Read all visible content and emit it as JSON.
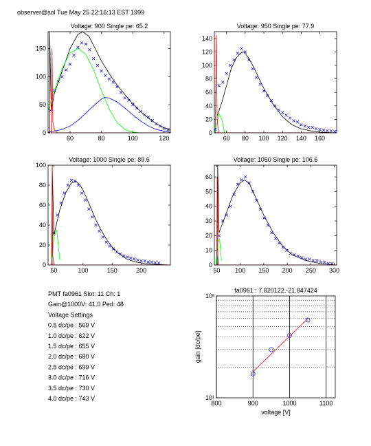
{
  "header": "observer@sol  Tue May 25 22:16:13 EST 1999",
  "chart_data": [
    {
      "type": "line",
      "title": "Voltage: 900 Single pe: 65.2",
      "xlim": [
        46,
        124
      ],
      "xticks": [
        60,
        80,
        100,
        120
      ],
      "ylim": [
        0,
        180
      ],
      "yticks": [
        0,
        50,
        100,
        150
      ],
      "series": [
        {
          "color": "#0000ff",
          "style": "x",
          "x": [
            47.5,
            50,
            52.5,
            55,
            57.5,
            60,
            62.5,
            65,
            67.5,
            70,
            72.5,
            75,
            77.5,
            80,
            82.5,
            85,
            87.5,
            90,
            92.5,
            95,
            97.5,
            100,
            102.5,
            105,
            107.5,
            110,
            112.5,
            115,
            117.5,
            120,
            122.5
          ],
          "values": [
            40,
            75,
            92,
            100,
            112,
            122,
            138,
            152,
            160,
            158,
            148,
            132,
            120,
            110,
            102,
            96,
            90,
            82,
            72,
            62,
            58,
            50,
            44,
            38,
            32,
            28,
            22,
            16,
            12,
            8,
            6
          ]
        },
        {
          "color": "#000000",
          "style": "line",
          "x": [
            47,
            47,
            48,
            50,
            55,
            60,
            65,
            68,
            72,
            76,
            80,
            85,
            90,
            95,
            100,
            105,
            110,
            115,
            120,
            124
          ],
          "values": [
            0,
            180,
            40,
            70,
            110,
            150,
            175,
            180,
            172,
            150,
            128,
            105,
            85,
            68,
            52,
            38,
            26,
            16,
            9,
            5
          ]
        },
        {
          "color": "#00ff00",
          "style": "line",
          "x": [
            46,
            50,
            55,
            60,
            65,
            70,
            75,
            80,
            85,
            90,
            95,
            100,
            105
          ],
          "values": [
            40,
            75,
            115,
            142,
            150,
            140,
            112,
            75,
            42,
            18,
            6,
            1,
            0
          ]
        },
        {
          "color": "#0000ff",
          "style": "line",
          "x": [
            46,
            55,
            60,
            65,
            70,
            75,
            80,
            82,
            85,
            90,
            95,
            100,
            105,
            110,
            115,
            120,
            124
          ],
          "values": [
            1,
            6,
            12,
            22,
            35,
            48,
            60,
            63,
            62,
            55,
            44,
            32,
            21,
            12,
            6,
            3,
            1
          ]
        },
        {
          "color": "#ff0000",
          "style": "line",
          "x": [
            46,
            48,
            48.5,
            49,
            50,
            52,
            124
          ],
          "values": [
            0,
            0,
            150,
            20,
            5,
            0,
            0
          ]
        }
      ]
    },
    {
      "type": "line",
      "title": "Voltage: 950 Single pe: 77.9",
      "xlim": [
        47,
        178
      ],
      "xticks": [
        60,
        80,
        100,
        120,
        140,
        160
      ],
      "ylim": [
        0,
        150
      ],
      "yticks": [
        0,
        20,
        40,
        60,
        80,
        100,
        120,
        140
      ],
      "series": [
        {
          "color": "#0000ff",
          "style": "x",
          "x": [
            48,
            52,
            56,
            60,
            64,
            68,
            72,
            76,
            80,
            84,
            88,
            92,
            96,
            100,
            104,
            108,
            112,
            116,
            120,
            124,
            128,
            132,
            136,
            140,
            144,
            148,
            152,
            156,
            160,
            164,
            168,
            172,
            176
          ],
          "values": [
            5,
            70,
            75,
            88,
            100,
            108,
            118,
            125,
            120,
            108,
            95,
            82,
            72,
            62,
            55,
            48,
            40,
            34,
            30,
            26,
            22,
            18,
            16,
            12,
            10,
            8,
            8,
            6,
            5,
            4,
            3,
            3,
            2
          ]
        },
        {
          "color": "#000000",
          "style": "line",
          "x": [
            50,
            55,
            60,
            65,
            70,
            75,
            78,
            80,
            85,
            90,
            95,
            100,
            110,
            120,
            130,
            140,
            150,
            160,
            178
          ],
          "values": [
            25,
            45,
            70,
            95,
            110,
            118,
            120,
            118,
            108,
            95,
            80,
            66,
            42,
            24,
            12,
            6,
            3,
            1,
            0
          ]
        },
        {
          "color": "#00ff00",
          "style": "line",
          "x": [
            47,
            50,
            52,
            55,
            58
          ],
          "values": [
            0,
            15,
            28,
            20,
            0
          ]
        },
        {
          "color": "#0000ff",
          "style": "line",
          "x": [
            47,
            178
          ],
          "values": [
            0,
            0
          ]
        },
        {
          "color": "#ff0000",
          "style": "line",
          "x": [
            47,
            48,
            49,
            50,
            51,
            52,
            178
          ],
          "values": [
            0,
            0,
            145,
            20,
            5,
            0,
            0
          ]
        }
      ]
    },
    {
      "type": "line",
      "title": "Voltage: 1000 Single pe: 89.6",
      "xlim": [
        40,
        250
      ],
      "xticks": [
        50,
        100,
        150,
        200
      ],
      "ylim": [
        0,
        100
      ],
      "yticks": [
        0,
        20,
        40,
        60,
        80,
        100
      ],
      "series": [
        {
          "color": "#0000ff",
          "style": "x",
          "x": [
            50,
            56,
            62,
            68,
            74,
            80,
            86,
            92,
            98,
            104,
            110,
            116,
            122,
            128,
            134,
            140,
            146,
            152,
            158,
            164,
            170,
            176,
            182,
            188,
            194,
            200,
            206,
            212,
            218,
            224,
            230
          ],
          "values": [
            32,
            50,
            62,
            72,
            80,
            85,
            84,
            80,
            72,
            65,
            56,
            48,
            40,
            34,
            28,
            23,
            19,
            16,
            13,
            11,
            9,
            8,
            7,
            6,
            5,
            4,
            4,
            3,
            3,
            2,
            2
          ]
        },
        {
          "color": "#000000",
          "style": "line",
          "x": [
            47,
            47,
            50,
            60,
            70,
            80,
            88,
            95,
            100,
            110,
            120,
            130,
            140,
            150,
            160,
            175,
            190,
            210,
            250
          ],
          "values": [
            0,
            100,
            30,
            55,
            72,
            82,
            84,
            80,
            75,
            62,
            48,
            36,
            26,
            18,
            12,
            6,
            3,
            1,
            0
          ]
        },
        {
          "color": "#00ff00",
          "style": "line",
          "x": [
            46,
            50,
            55,
            60
          ],
          "values": [
            0,
            28,
            35,
            5
          ]
        },
        {
          "color": "#0000ff",
          "style": "line",
          "x": [
            40,
            250
          ],
          "values": [
            0,
            0
          ]
        },
        {
          "color": "#ff0000",
          "style": "line",
          "x": [
            40,
            46,
            47,
            48,
            50,
            250
          ],
          "values": [
            0,
            0,
            100,
            10,
            0,
            0
          ]
        }
      ]
    },
    {
      "type": "line",
      "title": "Voltage: 1050 Single pe: 106.6",
      "xlim": [
        45,
        305
      ],
      "xticks": [
        50,
        100,
        150,
        200,
        250,
        300
      ],
      "ylim": [
        0,
        68
      ],
      "yticks": [
        0,
        10,
        20,
        30,
        40,
        50,
        60
      ],
      "series": [
        {
          "color": "#0000ff",
          "style": "x",
          "x": [
            55,
            63,
            71,
            79,
            87,
            95,
            103,
            111,
            119,
            127,
            135,
            143,
            151,
            159,
            167,
            175,
            183,
            191,
            199,
            207,
            215,
            223,
            231,
            239,
            247,
            255,
            263,
            271,
            279,
            287,
            295
          ],
          "values": [
            20,
            30,
            34,
            40,
            48,
            55,
            58,
            60,
            56,
            50,
            44,
            38,
            32,
            27,
            22,
            18,
            15,
            12,
            10,
            8,
            7,
            6,
            5,
            4,
            4,
            3,
            3,
            2,
            2,
            1,
            1
          ]
        },
        {
          "color": "#000000",
          "style": "line",
          "x": [
            52,
            52,
            55,
            70,
            85,
            100,
            110,
            120,
            130,
            150,
            170,
            190,
            210,
            240,
            270,
            305
          ],
          "values": [
            0,
            68,
            22,
            35,
            48,
            56,
            58,
            55,
            48,
            34,
            22,
            13,
            7,
            3,
            1,
            0
          ]
        },
        {
          "color": "#00ff00",
          "style": "line",
          "x": [
            48,
            52,
            56,
            60
          ],
          "values": [
            0,
            15,
            18,
            3
          ]
        },
        {
          "color": "#0000ff",
          "style": "line",
          "x": [
            45,
            305
          ],
          "values": [
            0,
            0
          ]
        },
        {
          "color": "#ff0000",
          "style": "line",
          "x": [
            45,
            50,
            51,
            52,
            54,
            305
          ],
          "values": [
            0,
            0,
            60,
            8,
            0,
            0
          ]
        }
      ]
    },
    {
      "type": "line",
      "title": "fa0961 : 7.820122,-21.847424",
      "xlabel": "voltage [V]",
      "ylabel": "gain [dc/pe]",
      "xlim": [
        800,
        1125
      ],
      "xticks": [
        800,
        900,
        1000,
        1100
      ],
      "ylim": [
        10,
        100
      ],
      "ylog": true,
      "yticks": [
        {
          "value": 10,
          "label": "10¹"
        },
        {
          "value": 100,
          "label": "10²"
        }
      ],
      "xgrid": true,
      "yminorgrid": [
        20,
        30,
        40,
        50,
        60,
        70,
        80,
        90
      ],
      "series": [
        {
          "color": "#ff0000",
          "style": "line",
          "x": [
            900,
            1050
          ],
          "values": [
            18.0,
            60.1
          ]
        },
        {
          "color": "#0000ff",
          "style": "o",
          "x": [
            900,
            950,
            1000,
            1050
          ],
          "values": [
            17.2,
            29.7,
            41.0,
            58
          ]
        }
      ]
    }
  ],
  "info": [
    "PMT fa0961 Slot: 11 Ch: 1",
    "Gain@1000V: 41.0 Ped: 48",
    "Voltage Settings",
    "0.5 dc/pe : 569 V",
    "1.0 dc/pe : 622 V",
    "1.5 dc/pe : 655 V",
    "2.0 dc/pe : 680 V",
    "2.5 dc/pe : 699 V",
    "3.0 dc/pe : 716 V",
    "3.5 dc/pe : 730 V",
    "4.0 dc/pe : 743 V"
  ]
}
